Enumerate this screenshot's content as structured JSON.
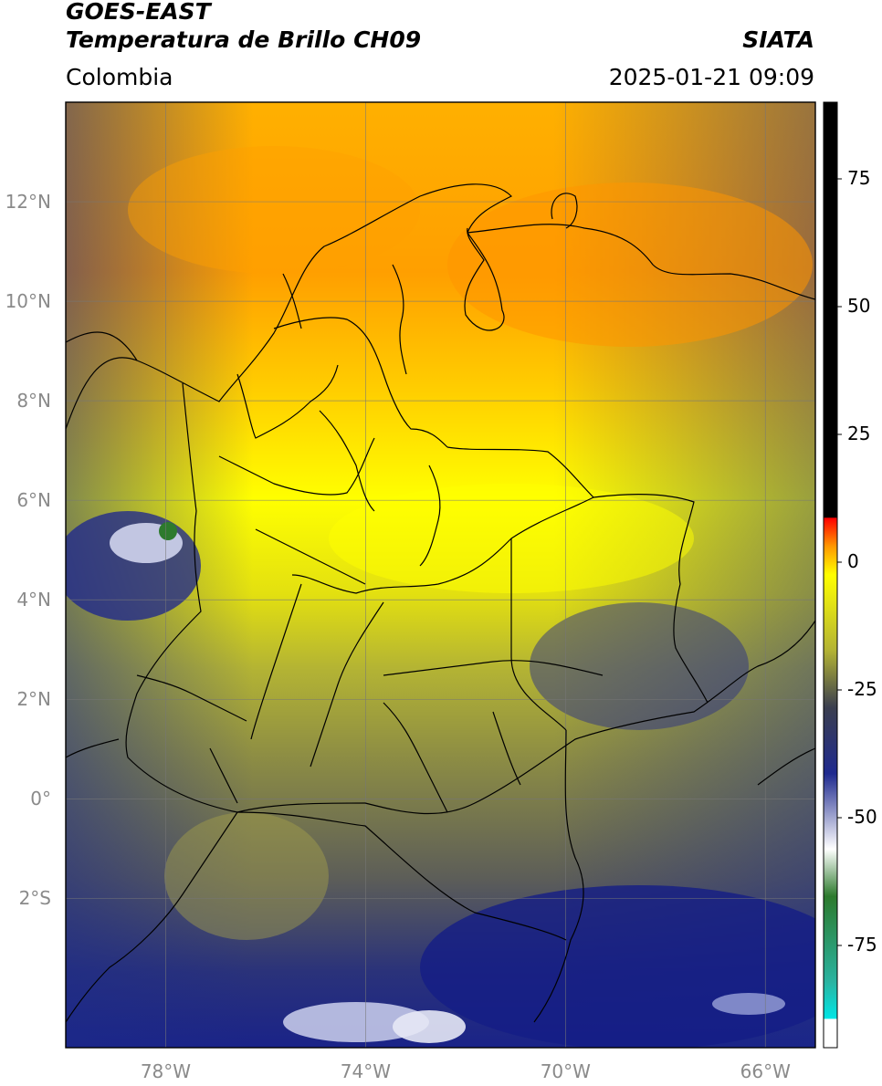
{
  "header": {
    "satellite": "GOES-EAST",
    "product": "Temperatura de Brillo CH09",
    "region": "Colombia",
    "agency": "SIATA",
    "datetime": "2025-01-21 09:09"
  },
  "map": {
    "extent": {
      "lon_min": -80,
      "lon_max": -65,
      "lat_min": -5,
      "lat_max": 14
    },
    "lat_ticks": [
      {
        "value": 12,
        "label": "12°N"
      },
      {
        "value": 10,
        "label": "10°N"
      },
      {
        "value": 8,
        "label": "8°N"
      },
      {
        "value": 6,
        "label": "6°N"
      },
      {
        "value": 4,
        "label": "4°N"
      },
      {
        "value": 2,
        "label": "2°N"
      },
      {
        "value": 0,
        "label": "0°"
      },
      {
        "value": -2,
        "label": "2°S"
      }
    ],
    "lon_ticks": [
      {
        "value": -78,
        "label": "78°W"
      },
      {
        "value": -74,
        "label": "74°W"
      },
      {
        "value": -70,
        "label": "70°W"
      },
      {
        "value": -66,
        "label": "66°W"
      }
    ],
    "grid": true
  },
  "colorbar": {
    "range": [
      -95,
      90
    ],
    "ticks": [
      {
        "value": 75,
        "label": "75"
      },
      {
        "value": 50,
        "label": "50"
      },
      {
        "value": 25,
        "label": "25"
      },
      {
        "value": 0,
        "label": "0"
      },
      {
        "value": -25,
        "label": "-25"
      },
      {
        "value": -50,
        "label": "-50"
      },
      {
        "value": -75,
        "label": "-75"
      }
    ],
    "colors": [
      "#ffffff",
      "#00e5e5",
      "#2e9e8c",
      "#2d7a2d",
      "#ffffff",
      "#1f2a8f",
      "#3b3f4f",
      "#b3b334",
      "#ffff00",
      "#ff9900",
      "#ff0000",
      "#000000"
    ]
  }
}
